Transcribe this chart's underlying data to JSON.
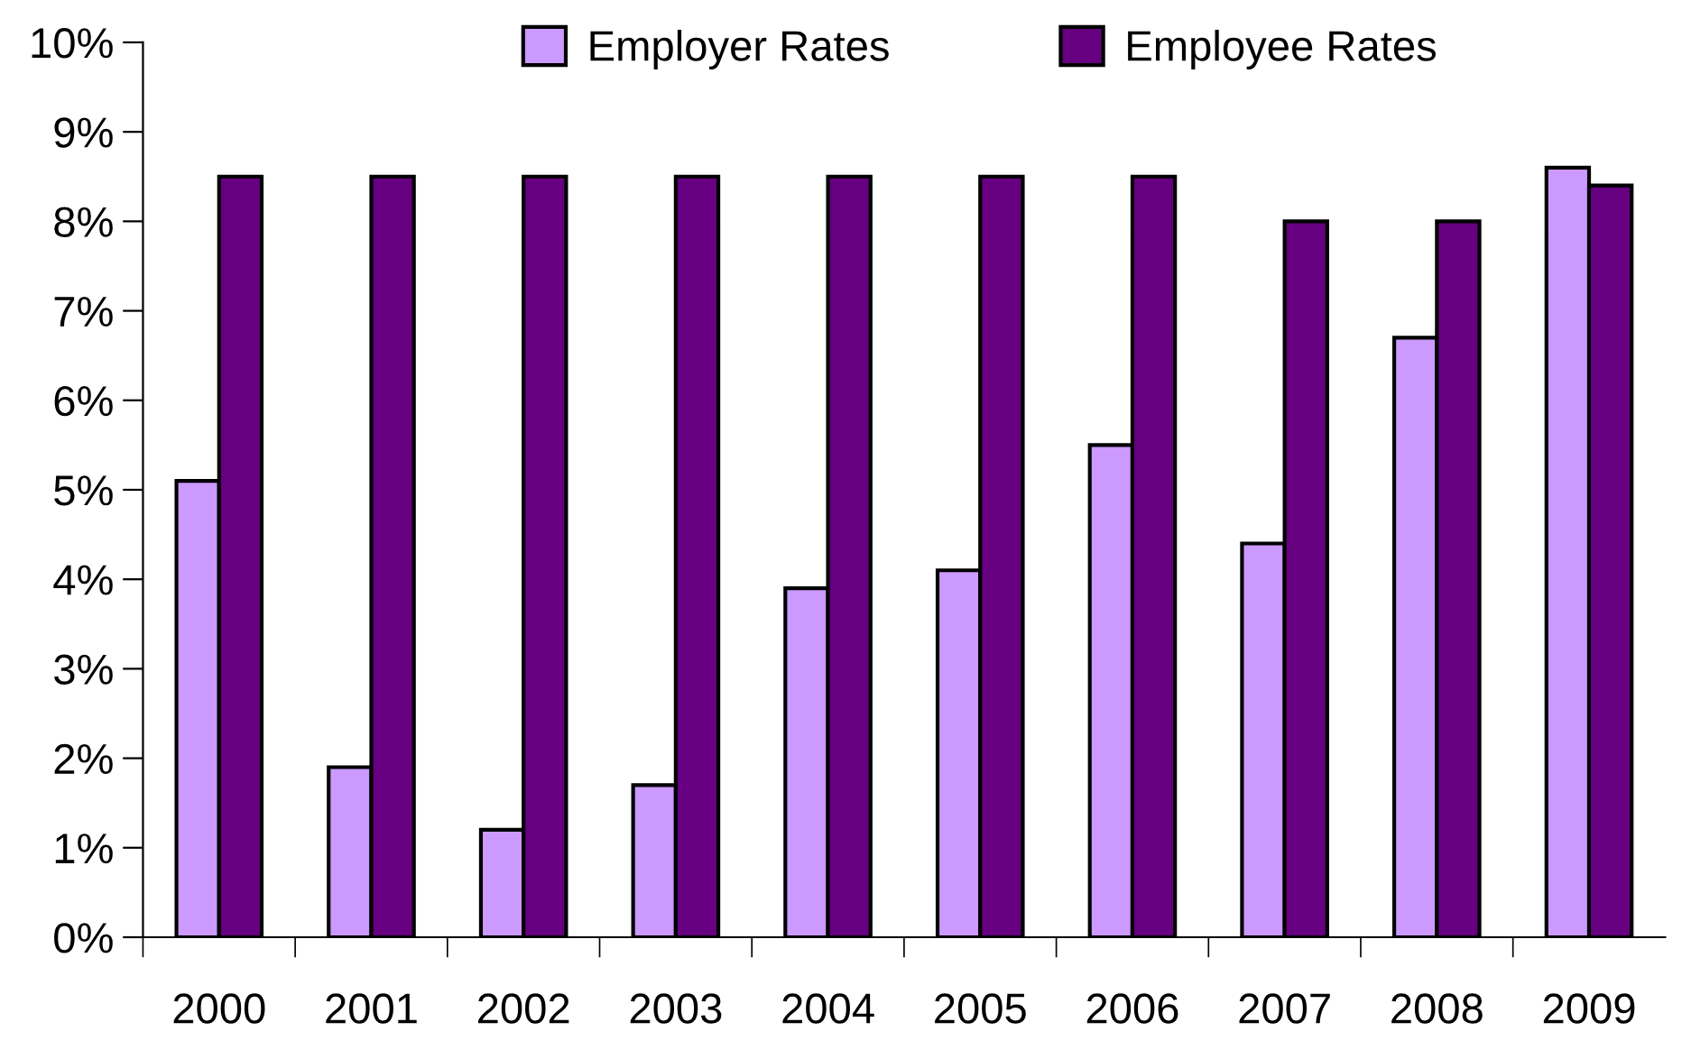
{
  "chart_data": {
    "type": "bar",
    "categories": [
      "2000",
      "2001",
      "2002",
      "2003",
      "2004",
      "2005",
      "2006",
      "2007",
      "2008",
      "2009"
    ],
    "series": [
      {
        "name": "Employer Rates",
        "color": "#cc99ff",
        "values": [
          5.1,
          1.9,
          1.2,
          1.7,
          3.9,
          4.1,
          5.5,
          4.4,
          6.7,
          8.6
        ]
      },
      {
        "name": "Employee Rates",
        "color": "#660080",
        "values": [
          8.5,
          8.5,
          8.5,
          8.5,
          8.5,
          8.5,
          8.5,
          8.0,
          8.0,
          8.4
        ]
      }
    ],
    "ylim": [
      0,
      10
    ],
    "yticks": [
      {
        "value": 0,
        "label": "0%"
      },
      {
        "value": 1,
        "label": "1%"
      },
      {
        "value": 2,
        "label": "2%"
      },
      {
        "value": 3,
        "label": "3%"
      },
      {
        "value": 4,
        "label": "4%"
      },
      {
        "value": 5,
        "label": "5%"
      },
      {
        "value": 6,
        "label": "6%"
      },
      {
        "value": 7,
        "label": "7%"
      },
      {
        "value": 8,
        "label": "8%"
      },
      {
        "value": 9,
        "label": "9%"
      },
      {
        "value": 10,
        "label": "10%"
      }
    ],
    "grid": false,
    "legend": "top"
  }
}
